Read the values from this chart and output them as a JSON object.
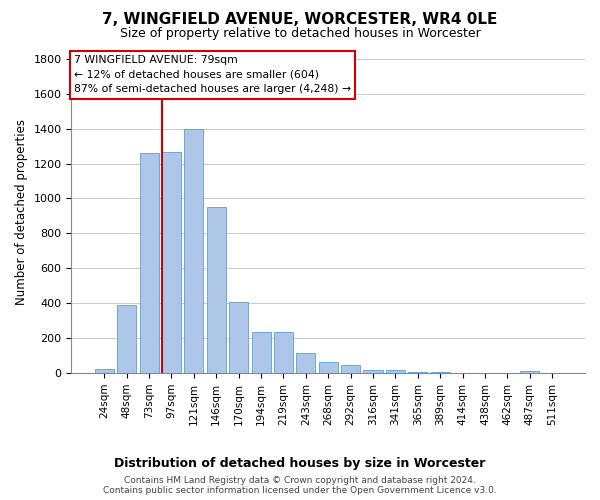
{
  "title_line1": "7, WINGFIELD AVENUE, WORCESTER, WR4 0LE",
  "title_line2": "Size of property relative to detached houses in Worcester",
  "xlabel": "Distribution of detached houses by size in Worcester",
  "ylabel": "Number of detached properties",
  "footer_line1": "Contains HM Land Registry data © Crown copyright and database right 2024.",
  "footer_line2": "Contains public sector information licensed under the Open Government Licence v3.0.",
  "categories": [
    "24sqm",
    "48sqm",
    "73sqm",
    "97sqm",
    "121sqm",
    "146sqm",
    "170sqm",
    "194sqm",
    "219sqm",
    "243sqm",
    "268sqm",
    "292sqm",
    "316sqm",
    "341sqm",
    "365sqm",
    "389sqm",
    "414sqm",
    "438sqm",
    "462sqm",
    "487sqm",
    "511sqm"
  ],
  "bar_values": [
    25,
    390,
    1260,
    1265,
    1395,
    950,
    410,
    235,
    235,
    115,
    65,
    45,
    20,
    20,
    5,
    5,
    0,
    0,
    0,
    15,
    0
  ],
  "bar_color": "#aec6e8",
  "bar_edge_color": "#5a9fd4",
  "grid_color": "#cccccc",
  "annotation_box_color": "#cc0000",
  "annotation_text_line1": "7 WINGFIELD AVENUE: 79sqm",
  "annotation_text_line2": "← 12% of detached houses are smaller (604)",
  "annotation_text_line3": "87% of semi-detached houses are larger (4,248) →",
  "vline_x_data": 2.6,
  "ylim": [
    0,
    1850
  ],
  "yticks": [
    0,
    200,
    400,
    600,
    800,
    1000,
    1200,
    1400,
    1600,
    1800
  ],
  "background_color": "#ffffff",
  "figsize": [
    6.0,
    5.0
  ],
  "dpi": 100
}
